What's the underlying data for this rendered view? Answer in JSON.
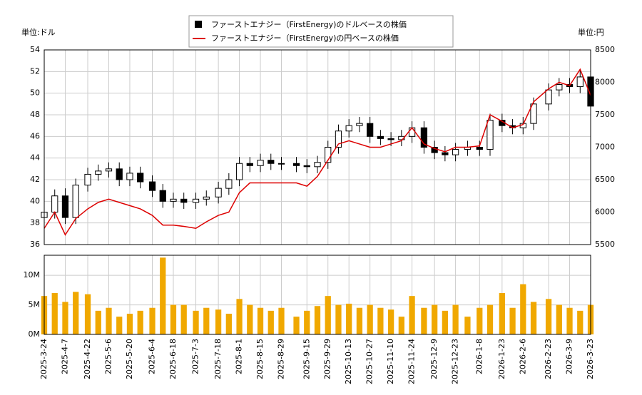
{
  "chart_data": [
    {
      "type": "candlestick",
      "y_label": "単位:ドル",
      "y2_label": "単位:円",
      "x": [
        "2025-3-24",
        "2025-3-31",
        "2025-4-7",
        "2025-4-14",
        "2025-4-22",
        "2025-4-29",
        "2025-5-6",
        "2025-5-13",
        "2025-5-20",
        "2025-5-27",
        "2025-6-4",
        "2025-6-11",
        "2025-6-18",
        "2025-6-25",
        "2025-7-3",
        "2025-7-10",
        "2025-7-18",
        "2025-7-25",
        "2025-8-1",
        "2025-8-8",
        "2025-8-15",
        "2025-8-22",
        "2025-8-29",
        "2025-9-8",
        "2025-9-15",
        "2025-9-22",
        "2025-9-29",
        "2025-10-6",
        "2025-10-13",
        "2025-10-20",
        "2025-10-27",
        "2025-11-3",
        "2025-11-10",
        "2025-11-17",
        "2025-11-24",
        "2025-12-2",
        "2025-12-9",
        "2025-12-16",
        "2025-12-23",
        "2025-12-31",
        "2026-1-8",
        "2026-1-15",
        "2026-1-23",
        "2026-1-30",
        "2026-2-6",
        "2026-2-13",
        "2026-2-23",
        "2026-3-2",
        "2026-3-9",
        "2026-3-16",
        "2026-3-23"
      ],
      "xlim": [
        "2025-3-24",
        "2026-3-23"
      ],
      "candle_name": "ファーストエナジー（FirstEnergy)のドルベースの株価",
      "candle_color": "#000000",
      "open": [
        38.5,
        39.0,
        40.5,
        38.5,
        41.5,
        42.5,
        42.8,
        43.0,
        42.0,
        42.6,
        41.8,
        41.0,
        40.0,
        40.2,
        39.9,
        40.2,
        40.4,
        41.2,
        42.0,
        43.5,
        43.3,
        43.8,
        43.5,
        43.5,
        43.3,
        43.2,
        43.6,
        45.0,
        46.5,
        47.0,
        47.2,
        46.0,
        45.8,
        45.7,
        46.0,
        46.8,
        45.0,
        44.5,
        44.3,
        44.8,
        45.0,
        44.8,
        47.5,
        47.0,
        46.8,
        47.2,
        49.0,
        50.3,
        50.8,
        50.6,
        51.5
      ],
      "high": [
        39.6,
        41.1,
        41.2,
        42.1,
        43.1,
        43.4,
        43.6,
        43.6,
        43.2,
        43.2,
        42.4,
        41.6,
        40.8,
        40.8,
        40.8,
        41.0,
        41.8,
        42.6,
        44.1,
        44.1,
        44.4,
        44.4,
        44.1,
        44.1,
        43.9,
        44.2,
        45.6,
        47.1,
        47.6,
        47.8,
        47.8,
        46.6,
        46.4,
        46.6,
        47.4,
        47.4,
        45.6,
        45.1,
        45.4,
        45.6,
        45.6,
        48.1,
        48.1,
        47.6,
        47.8,
        49.6,
        50.9,
        51.4,
        51.4,
        52.1,
        52.1
      ],
      "low": [
        37.9,
        38.4,
        37.9,
        37.9,
        40.9,
        41.9,
        42.2,
        41.4,
        41.4,
        41.2,
        40.4,
        39.4,
        39.4,
        39.3,
        39.3,
        39.6,
        39.8,
        40.6,
        41.4,
        42.7,
        42.7,
        42.9,
        42.9,
        42.7,
        42.6,
        42.6,
        43.0,
        44.4,
        45.9,
        46.4,
        45.4,
        45.2,
        45.1,
        45.1,
        45.4,
        44.4,
        43.9,
        43.7,
        43.7,
        44.2,
        44.2,
        44.2,
        46.4,
        46.2,
        46.2,
        46.6,
        48.4,
        49.7,
        50.0,
        50.0,
        48.2
      ],
      "close": [
        39.0,
        40.5,
        38.5,
        41.5,
        42.5,
        42.8,
        43.0,
        42.0,
        42.6,
        41.8,
        41.0,
        40.0,
        40.2,
        39.9,
        40.2,
        40.4,
        41.2,
        42.0,
        43.5,
        43.3,
        43.8,
        43.5,
        43.5,
        43.3,
        43.2,
        43.6,
        45.0,
        46.5,
        47.0,
        47.2,
        46.0,
        45.8,
        45.7,
        46.0,
        46.8,
        45.0,
        44.5,
        44.3,
        44.8,
        45.0,
        44.8,
        47.5,
        47.0,
        46.8,
        47.2,
        49.0,
        50.3,
        50.8,
        50.6,
        51.5,
        48.8
      ],
      "series": [
        {
          "name": "ファーストエナジー（FirstEnergy)の円ベースの株価",
          "color": "#dd0000",
          "axis": "y2",
          "values": [
            5750,
            6000,
            5650,
            5900,
            6050,
            6150,
            6200,
            6150,
            6100,
            6050,
            5950,
            5800,
            5800,
            5780,
            5750,
            5850,
            5950,
            6000,
            6300,
            6450,
            6450,
            6450,
            6450,
            6450,
            6400,
            6550,
            6800,
            7050,
            7100,
            7050,
            7000,
            7000,
            7050,
            7100,
            7300,
            7050,
            6980,
            6930,
            7000,
            7000,
            7020,
            7500,
            7400,
            7300,
            7350,
            7700,
            7900,
            8000,
            7950,
            8200,
            7800
          ]
        }
      ],
      "ylim": [
        36,
        54
      ],
      "yticks": [
        36,
        38,
        40,
        42,
        44,
        46,
        48,
        50,
        52,
        54
      ],
      "y2lim": [
        5500,
        8500
      ],
      "y2ticks": [
        5500,
        6000,
        6500,
        7000,
        7500,
        8000,
        8500
      ],
      "grid": true
    },
    {
      "type": "bar",
      "color": "#f0a800",
      "values": [
        6500000,
        7000000,
        5500000,
        7200000,
        6800000,
        4000000,
        4500000,
        3000000,
        3500000,
        4000000,
        4500000,
        13000000,
        5000000,
        5000000,
        4000000,
        4500000,
        4200000,
        3500000,
        6000000,
        5000000,
        4500000,
        4000000,
        4500000,
        3000000,
        4000000,
        4800000,
        6500000,
        5000000,
        5200000,
        4500000,
        5000000,
        4500000,
        4200000,
        3000000,
        6500000,
        4500000,
        5000000,
        4000000,
        5000000,
        3000000,
        4500000,
        5000000,
        7000000,
        4500000,
        8500000,
        5500000,
        6000000,
        5000000,
        4500000,
        4000000,
        5000000
      ],
      "ylim": [
        0,
        13400000
      ],
      "yticks": [
        {
          "value": 0,
          "label": "0M"
        },
        {
          "value": 5000000,
          "label": "5M"
        },
        {
          "value": 10000000,
          "label": "10M"
        }
      ],
      "xticks": [
        "2025-3-24",
        "2025-4-7",
        "2025-4-22",
        "2025-5-6",
        "2025-5-20",
        "2025-6-4",
        "2025-6-18",
        "2025-7-3",
        "2025-7-18",
        "2025-8-1",
        "2025-8-15",
        "2025-8-29",
        "2025-9-15",
        "2025-9-29",
        "2025-10-13",
        "2025-10-27",
        "2025-11-10",
        "2025-11-24",
        "2025-12-9",
        "2025-12-23",
        "2026-1-8",
        "2026-1-23",
        "2026-2-6",
        "2026-2-23",
        "2026-3-9",
        "2026-3-23"
      ],
      "grid": true
    }
  ]
}
